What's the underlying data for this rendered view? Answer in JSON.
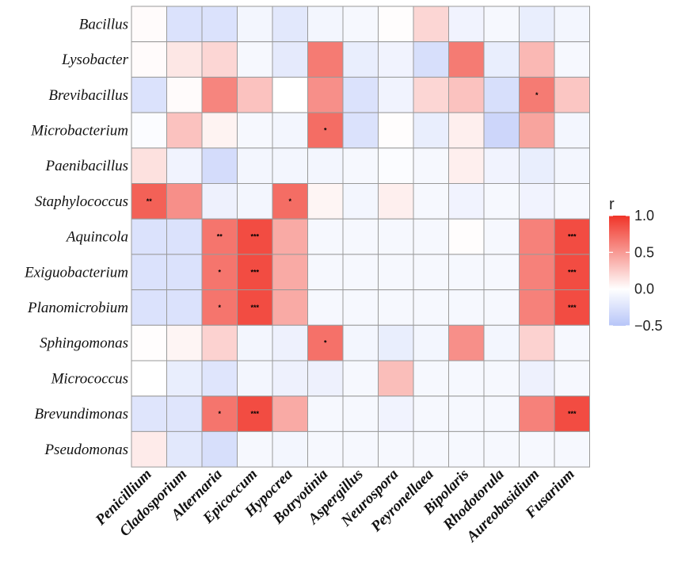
{
  "chart_data": {
    "type": "heatmap",
    "title": "",
    "rows": [
      "Bacillus",
      "Lysobacter",
      "Brevibacillus",
      "Microbacterium",
      "Paenibacillus",
      "Staphylococcus",
      "Aquincola",
      "Exiguobacterium",
      "Planomicrobium",
      "Sphingomonas",
      "Micrococcus",
      "Brevundimonas",
      "Pseudomonas"
    ],
    "columns": [
      "Penicillium",
      "Cladosporium",
      "Alternaria",
      "Epicoccum",
      "Hypocrea",
      "Botryotinia",
      "Aspergillus",
      "Neurospora",
      "Peyronellaea",
      "Bipolaris",
      "Rhodotorula",
      "Aureobasidium",
      "Fusarium"
    ],
    "values": [
      [
        0.02,
        -0.25,
        -0.25,
        -0.08,
        -0.2,
        -0.08,
        -0.06,
        0.01,
        0.2,
        -0.1,
        -0.06,
        -0.15,
        -0.08
      ],
      [
        0.02,
        0.12,
        0.2,
        -0.06,
        -0.18,
        0.65,
        -0.15,
        -0.1,
        -0.28,
        0.65,
        -0.15,
        0.35,
        -0.06
      ],
      [
        -0.25,
        0.02,
        0.6,
        0.3,
        0.0,
        0.55,
        -0.25,
        -0.1,
        0.2,
        0.3,
        -0.28,
        0.65,
        0.28
      ],
      [
        -0.03,
        0.3,
        0.06,
        -0.06,
        -0.08,
        0.72,
        -0.25,
        0.01,
        -0.15,
        0.08,
        -0.35,
        0.45,
        -0.08
      ],
      [
        0.15,
        -0.1,
        -0.3,
        -0.08,
        -0.08,
        -0.08,
        -0.06,
        -0.03,
        -0.06,
        0.08,
        -0.1,
        -0.15,
        -0.08
      ],
      [
        0.78,
        0.55,
        -0.12,
        -0.08,
        0.72,
        0.05,
        -0.08,
        0.08,
        -0.06,
        -0.1,
        -0.06,
        -0.1,
        -0.06
      ],
      [
        -0.25,
        -0.25,
        0.68,
        0.88,
        0.42,
        -0.06,
        -0.06,
        -0.06,
        -0.06,
        0.01,
        -0.06,
        0.62,
        0.88
      ],
      [
        -0.25,
        -0.25,
        0.68,
        0.88,
        0.42,
        -0.06,
        -0.06,
        -0.06,
        -0.06,
        -0.06,
        -0.06,
        0.62,
        0.88
      ],
      [
        -0.25,
        -0.25,
        0.68,
        0.88,
        0.42,
        -0.06,
        -0.06,
        -0.06,
        -0.06,
        -0.06,
        -0.06,
        0.62,
        0.88
      ],
      [
        0.01,
        0.05,
        0.22,
        -0.08,
        -0.12,
        0.7,
        -0.08,
        -0.15,
        -0.08,
        0.55,
        -0.08,
        0.22,
        -0.06
      ],
      [
        0.0,
        -0.15,
        -0.22,
        -0.08,
        -0.12,
        -0.12,
        -0.06,
        0.32,
        -0.06,
        -0.06,
        -0.06,
        -0.12,
        -0.06
      ],
      [
        -0.22,
        -0.22,
        0.68,
        0.88,
        0.42,
        -0.06,
        -0.06,
        -0.1,
        -0.06,
        -0.06,
        -0.06,
        0.62,
        0.88
      ],
      [
        0.1,
        -0.2,
        -0.28,
        -0.06,
        -0.08,
        -0.06,
        -0.06,
        -0.06,
        -0.06,
        -0.06,
        -0.06,
        -0.06,
        -0.06
      ]
    ],
    "significance": [
      [
        "",
        "",
        "",
        "",
        "",
        "",
        "",
        "",
        "",
        "",
        "",
        "",
        ""
      ],
      [
        "",
        "",
        "",
        "",
        "",
        "",
        "",
        "",
        "",
        "",
        "",
        "",
        ""
      ],
      [
        "",
        "",
        "",
        "",
        "",
        "",
        "",
        "",
        "",
        "",
        "",
        "*",
        ""
      ],
      [
        "",
        "",
        "",
        "",
        "",
        "*",
        "",
        "",
        "",
        "",
        "",
        "",
        ""
      ],
      [
        "",
        "",
        "",
        "",
        "",
        "",
        "",
        "",
        "",
        "",
        "",
        "",
        ""
      ],
      [
        "**",
        "",
        "",
        "",
        "*",
        "",
        "",
        "",
        "",
        "",
        "",
        "",
        ""
      ],
      [
        "",
        "",
        "**",
        "***",
        "",
        "",
        "",
        "",
        "",
        "",
        "",
        "",
        "***"
      ],
      [
        "",
        "",
        "*",
        "***",
        "",
        "",
        "",
        "",
        "",
        "",
        "",
        "",
        "***"
      ],
      [
        "",
        "",
        "*",
        "***",
        "",
        "",
        "",
        "",
        "",
        "",
        "",
        "",
        "***"
      ],
      [
        "",
        "",
        "",
        "",
        "",
        "*",
        "",
        "",
        "",
        "",
        "",
        "",
        ""
      ],
      [
        "",
        "",
        "",
        "",
        "",
        "",
        "",
        "",
        "",
        "",
        "",
        "",
        ""
      ],
      [
        "",
        "",
        "*",
        "***",
        "",
        "",
        "",
        "",
        "",
        "",
        "",
        "",
        "***"
      ],
      [
        "",
        "",
        "",
        "",
        "",
        "",
        "",
        "",
        "",
        "",
        "",
        "",
        ""
      ]
    ],
    "colorscale": {
      "min": -0.5,
      "mid": 0.0,
      "max": 1.0,
      "low": "#b7c5f8",
      "midColor": "#ffffff",
      "high": "#f03428"
    },
    "legend": {
      "title": "r",
      "ticks": [
        1.0,
        0.5,
        0.0,
        -0.5
      ],
      "tick_labels": [
        "1.0",
        "0.5",
        "0.0",
        "−0.5"
      ],
      "placement": "right"
    }
  }
}
